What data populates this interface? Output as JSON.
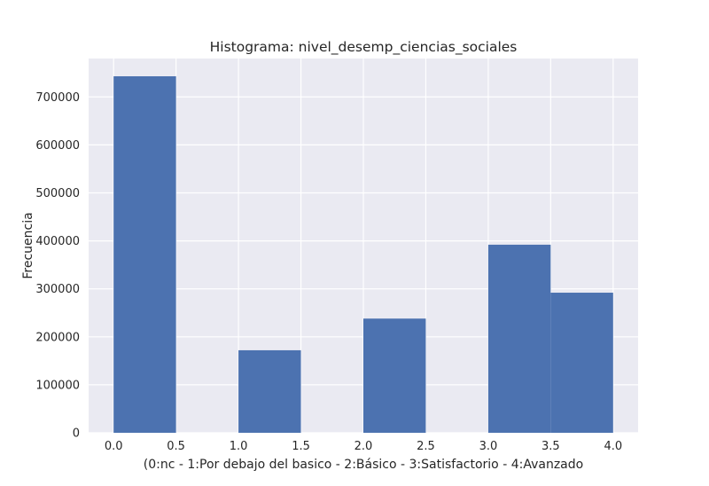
{
  "chart_data": {
    "type": "bar",
    "title": "Histograma: nivel_desemp_ciencias_sociales",
    "xlabel": "(0:nc - 1:Por debajo del basico - 2:Básico - 3:Satisfactorio - 4:Avanzado",
    "ylabel": "Frecuencia",
    "xlim": [
      -0.2,
      4.2
    ],
    "ylim": [
      0,
      780000
    ],
    "grid": true,
    "x_ticks": [
      0.0,
      0.5,
      1.0,
      1.5,
      2.0,
      2.5,
      3.0,
      3.5,
      4.0
    ],
    "x_tick_labels": [
      "0.0",
      "0.5",
      "1.0",
      "1.5",
      "2.0",
      "2.5",
      "3.0",
      "3.5",
      "4.0"
    ],
    "y_ticks": [
      0,
      100000,
      200000,
      300000,
      400000,
      500000,
      600000,
      700000
    ],
    "y_tick_labels": [
      "0",
      "100000",
      "200000",
      "300000",
      "400000",
      "500000",
      "600000",
      "700000"
    ],
    "bins": [
      {
        "start": 0.0,
        "end": 0.5,
        "value": 743000
      },
      {
        "start": 0.5,
        "end": 1.0,
        "value": 0
      },
      {
        "start": 1.0,
        "end": 1.5,
        "value": 172000
      },
      {
        "start": 1.5,
        "end": 2.0,
        "value": 0
      },
      {
        "start": 2.0,
        "end": 2.5,
        "value": 238000
      },
      {
        "start": 2.5,
        "end": 3.0,
        "value": 0
      },
      {
        "start": 3.0,
        "end": 3.5,
        "value": 392000
      },
      {
        "start": 3.5,
        "end": 4.0,
        "value": 292000
      }
    ],
    "colors": {
      "bar": "#4c72b0",
      "plot_background": "#eaeaf2",
      "grid": "#ffffff"
    }
  }
}
